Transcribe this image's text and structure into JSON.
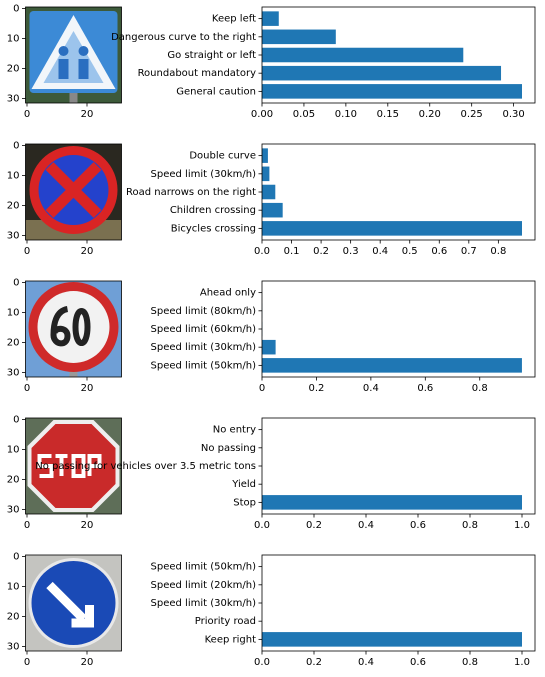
{
  "chart_data": [
    {
      "type": "image",
      "xlim": [
        -0.5,
        31.5
      ],
      "ylim": [
        31.5,
        -0.5
      ],
      "xticks": [
        0,
        20
      ],
      "yticks": [
        0,
        10,
        20,
        30
      ]
    },
    {
      "type": "barh",
      "categories": [
        "General caution",
        "Roundabout mandatory",
        "Go straight or left",
        "Dangerous curve to the right",
        "Keep left"
      ],
      "values": [
        0.31,
        0.285,
        0.24,
        0.088,
        0.02
      ],
      "color": "#1f77b4",
      "xlim": [
        0,
        0.3255
      ],
      "xticks": [
        {
          "value": 0,
          "label": "0.00"
        },
        {
          "value": 0.05,
          "label": "0.05"
        },
        {
          "value": 0.1,
          "label": "0.10"
        },
        {
          "value": 0.15,
          "label": "0.15"
        },
        {
          "value": 0.2,
          "label": "0.20"
        },
        {
          "value": 0.25,
          "label": "0.25"
        },
        {
          "value": 0.3,
          "label": "0.30"
        }
      ]
    },
    {
      "type": "image",
      "xlim": [
        -0.5,
        31.5
      ],
      "ylim": [
        31.5,
        -0.5
      ],
      "xticks": [
        0,
        20
      ],
      "yticks": [
        0,
        10,
        20,
        30
      ]
    },
    {
      "type": "barh",
      "categories": [
        "Bicycles crossing",
        "Children crossing",
        "Road narrows on the right",
        "Speed limit (30km/h)",
        "Double curve"
      ],
      "values": [
        0.88,
        0.07,
        0.045,
        0.025,
        0.02
      ],
      "color": "#1f77b4",
      "xlim": [
        0,
        0.924
      ],
      "xticks": [
        {
          "value": 0,
          "label": "0.0"
        },
        {
          "value": 0.1,
          "label": "0.1"
        },
        {
          "value": 0.2,
          "label": "0.2"
        },
        {
          "value": 0.3,
          "label": "0.3"
        },
        {
          "value": 0.4,
          "label": "0.4"
        },
        {
          "value": 0.5,
          "label": "0.5"
        },
        {
          "value": 0.6,
          "label": "0.6"
        },
        {
          "value": 0.7,
          "label": "0.7"
        },
        {
          "value": 0.8,
          "label": "0.8"
        }
      ]
    },
    {
      "type": "image",
      "xlim": [
        -0.5,
        31.5
      ],
      "ylim": [
        31.5,
        -0.5
      ],
      "xticks": [
        0,
        20
      ],
      "yticks": [
        0,
        10,
        20,
        30
      ]
    },
    {
      "type": "barh",
      "categories": [
        "Speed limit (50km/h)",
        "Speed limit (30km/h)",
        "Speed limit (60km/h)",
        "Speed limit (80km/h)",
        "Ahead only"
      ],
      "values": [
        0.955,
        0.05,
        0.001,
        0.0005,
        0
      ],
      "color": "#1f77b4",
      "xlim": [
        0,
        1.003
      ],
      "xticks": [
        0,
        {
          "value": 0.2,
          "label": "0.2"
        },
        {
          "value": 0.4,
          "label": "0.4"
        },
        {
          "value": 0.6,
          "label": "0.6"
        },
        {
          "value": 0.8,
          "label": "0.8"
        }
      ]
    },
    {
      "type": "image",
      "xlim": [
        -0.5,
        31.5
      ],
      "ylim": [
        31.5,
        -0.5
      ],
      "xticks": [
        0,
        20
      ],
      "yticks": [
        0,
        10,
        20,
        30
      ]
    },
    {
      "type": "barh",
      "categories": [
        "Stop",
        "Yield",
        "No passing for vehicles over 3.5 metric tons",
        "No passing",
        "No entry"
      ],
      "values": [
        1.0,
        0,
        0,
        0,
        0
      ],
      "color": "#1f77b4",
      "xlim": [
        0,
        1.05
      ],
      "xticks": [
        {
          "value": 0,
          "label": "0.0"
        },
        {
          "value": 0.2,
          "label": "0.2"
        },
        {
          "value": 0.4,
          "label": "0.4"
        },
        {
          "value": 0.6,
          "label": "0.6"
        },
        {
          "value": 0.8,
          "label": "0.8"
        },
        {
          "value": 1.0,
          "label": "1.0"
        }
      ]
    },
    {
      "type": "image",
      "xlim": [
        -0.5,
        31.5
      ],
      "ylim": [
        31.5,
        -0.5
      ],
      "xticks": [
        0,
        20
      ],
      "yticks": [
        0,
        10,
        20,
        30
      ]
    },
    {
      "type": "barh",
      "categories": [
        "Keep right",
        "Priority road",
        "Speed limit (30km/h)",
        "Speed limit (20km/h)",
        "Speed limit (50km/h)"
      ],
      "values": [
        1.0,
        0,
        0,
        0,
        0
      ],
      "color": "#1f77b4",
      "xlim": [
        0,
        1.05
      ],
      "xticks": [
        {
          "value": 0,
          "label": "0.0"
        },
        {
          "value": 0.2,
          "label": "0.2"
        },
        {
          "value": 0.4,
          "label": "0.4"
        },
        {
          "value": 0.6,
          "label": "0.6"
        },
        {
          "value": 0.8,
          "label": "0.8"
        },
        {
          "value": 1.0,
          "label": "1.0"
        }
      ]
    }
  ]
}
